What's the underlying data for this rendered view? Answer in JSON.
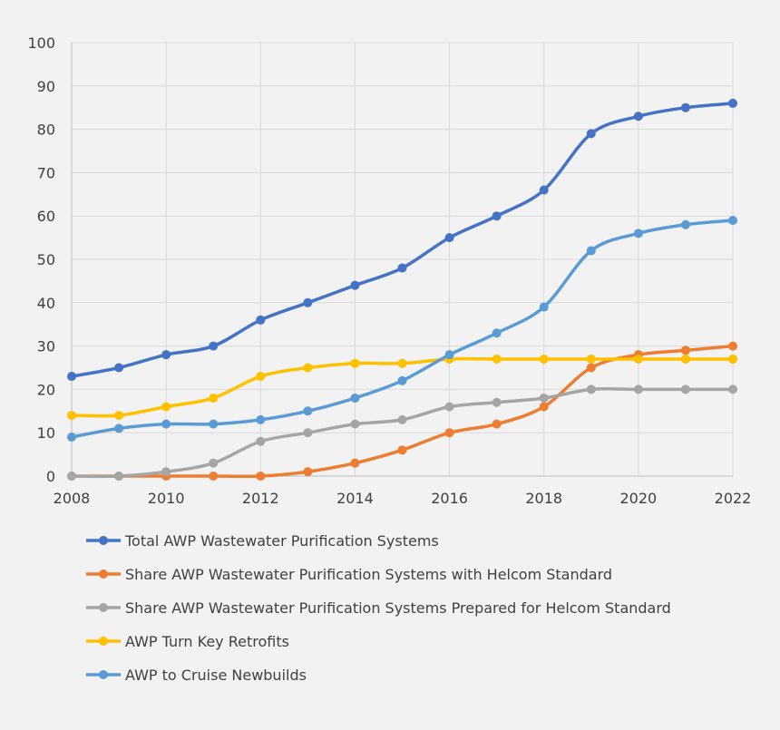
{
  "chart_data": {
    "type": "line",
    "x": [
      2008,
      2009,
      2010,
      2011,
      2012,
      2013,
      2014,
      2015,
      2016,
      2017,
      2018,
      2019,
      2020,
      2021,
      2022
    ],
    "x_tick_labels": [
      "2008",
      "2010",
      "2012",
      "2014",
      "2016",
      "2018",
      "2020",
      "2022"
    ],
    "y_tick_labels": [
      "0",
      "10",
      "20",
      "30",
      "40",
      "50",
      "60",
      "70",
      "80",
      "90",
      "100"
    ],
    "xlim": [
      2008,
      2022
    ],
    "ylim": [
      0,
      100
    ],
    "grid": true,
    "legend_position": "bottom",
    "series": [
      {
        "name": "Total AWP Wastewater Purification  Systems",
        "color": "#4472c4",
        "values": [
          23,
          25,
          28,
          30,
          36,
          40,
          44,
          48,
          55,
          60,
          66,
          79,
          83,
          85,
          86
        ]
      },
      {
        "name": "Share AWP Wastewater Purification  Systems with Helcom Standard",
        "color": "#ed7d31",
        "values": [
          0,
          0,
          0,
          0,
          0,
          1,
          3,
          6,
          10,
          12,
          16,
          25,
          28,
          29,
          30
        ]
      },
      {
        "name": "Share AWP Wastewater Purification  Systems Prepared  for  Helcom Standard",
        "color": "#a5a5a5",
        "values": [
          0,
          0,
          1,
          3,
          8,
          10,
          12,
          13,
          16,
          17,
          18,
          20,
          20,
          20,
          20
        ]
      },
      {
        "name": "AWP Turn Key Retrofits",
        "color": "#ffc000",
        "values": [
          14,
          14,
          16,
          18,
          23,
          25,
          26,
          26,
          27,
          27,
          27,
          27,
          27,
          27,
          27
        ]
      },
      {
        "name": "AWP to Cruise Newbuilds",
        "color": "#5b9bd5",
        "values": [
          9,
          11,
          12,
          12,
          13,
          15,
          18,
          22,
          28,
          33,
          39,
          52,
          56,
          58,
          59
        ]
      }
    ]
  }
}
